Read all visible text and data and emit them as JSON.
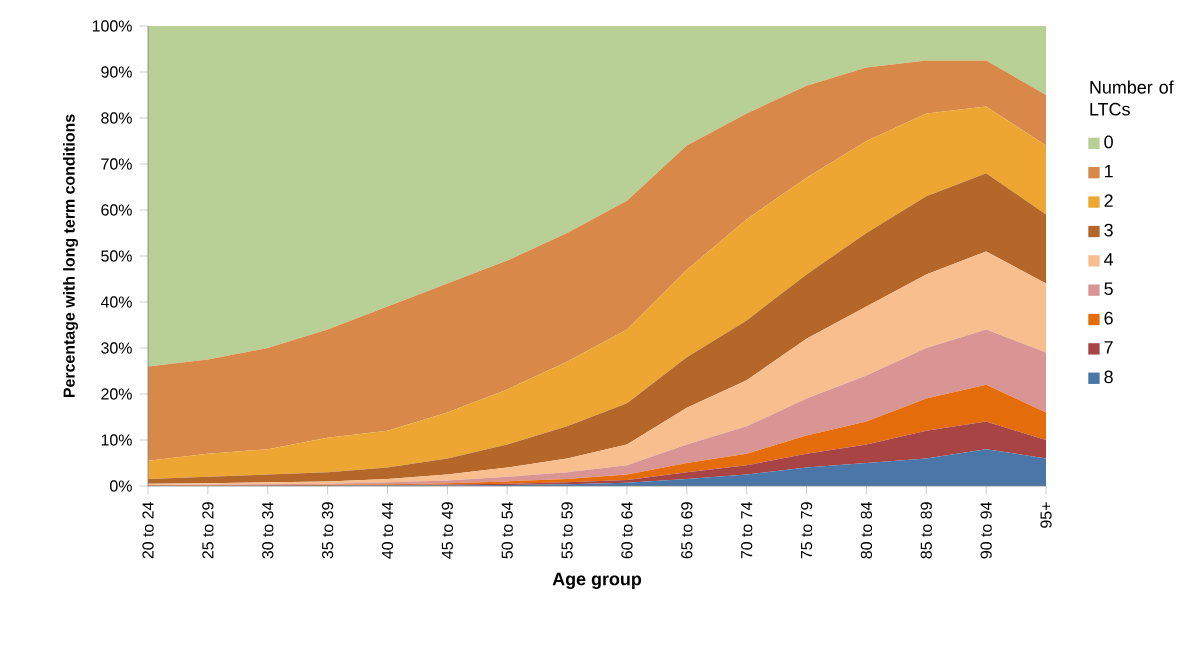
{
  "chart_data": {
    "type": "area",
    "stacked": true,
    "xlabel": "Age group",
    "ylabel": "Percentage with long term conditions",
    "legend_title": "Number of LTCs",
    "legend": "right",
    "categories": [
      "20 to 24",
      "25 to 29",
      "30 to 34",
      "35 to 39",
      "40 to 44",
      "45 to 49",
      "50 to 54",
      "55 to 59",
      "60 to 64",
      "65 to 69",
      "70 to 74",
      "75 to 79",
      "80 to 84",
      "85 to 89",
      "90 to 94",
      "95+"
    ],
    "ylim": [
      0,
      100
    ],
    "yticks": [
      {
        "value": 0,
        "label": "0%"
      },
      {
        "value": 10,
        "label": "10%"
      },
      {
        "value": 20,
        "label": "20%"
      },
      {
        "value": 30,
        "label": "30%"
      },
      {
        "value": 40,
        "label": "40%"
      },
      {
        "value": 50,
        "label": "50%"
      },
      {
        "value": 60,
        "label": "60%"
      },
      {
        "value": 70,
        "label": "70%"
      },
      {
        "value": 80,
        "label": "80%"
      },
      {
        "value": 90,
        "label": "90%"
      },
      {
        "value": 100,
        "label": "100%"
      }
    ],
    "series": [
      {
        "name": "8",
        "color": "#4a76a8",
        "values": [
          0,
          0,
          0,
          0,
          0.1,
          0.1,
          0.2,
          0.4,
          0.7,
          1.5,
          2.5,
          4,
          5,
          6,
          8,
          6
        ]
      },
      {
        "name": "7",
        "color": "#a84443",
        "values": [
          0,
          0,
          0.1,
          0.1,
          0.1,
          0.2,
          0.3,
          0.4,
          0.6,
          1.5,
          2,
          3,
          4,
          6,
          6,
          4
        ]
      },
      {
        "name": "6",
        "color": "#e46c0a",
        "values": [
          0.1,
          0.1,
          0.1,
          0.2,
          0.2,
          0.3,
          0.5,
          0.7,
          1.2,
          2,
          2.5,
          4,
          5,
          7,
          8,
          6
        ]
      },
      {
        "name": "5",
        "color": "#d99594",
        "values": [
          0.1,
          0.2,
          0.2,
          0.2,
          0.4,
          0.6,
          1,
          1.5,
          2,
          4,
          6,
          8,
          10,
          11,
          12,
          13
        ]
      },
      {
        "name": "4",
        "color": "#f8be8e",
        "values": [
          0.3,
          0.3,
          0.4,
          0.5,
          0.7,
          1.3,
          2,
          3,
          4.5,
          8,
          10,
          13,
          15,
          16,
          17,
          15
        ]
      },
      {
        "name": "3",
        "color": "#b5672a",
        "values": [
          1,
          1.4,
          1.7,
          2,
          2.5,
          3.5,
          5,
          7,
          9,
          11,
          13,
          14,
          16,
          17,
          17,
          15
        ]
      },
      {
        "name": "2",
        "color": "#eea632",
        "values": [
          4,
          5,
          5.5,
          7.5,
          8,
          10,
          12,
          14,
          16,
          19,
          22,
          21,
          20,
          18,
          14.5,
          15
        ]
      },
      {
        "name": "1",
        "color": "#d8894a",
        "values": [
          20.5,
          20.5,
          22,
          23.5,
          27,
          28,
          28,
          28,
          28,
          27,
          23,
          20,
          16,
          11.5,
          10,
          11
        ]
      },
      {
        "name": "0",
        "color": "#b8cf96",
        "values": [
          74,
          72.5,
          70,
          66,
          61,
          56,
          51,
          45,
          38,
          26,
          19,
          13,
          9,
          7.5,
          7.5,
          15
        ]
      }
    ]
  }
}
